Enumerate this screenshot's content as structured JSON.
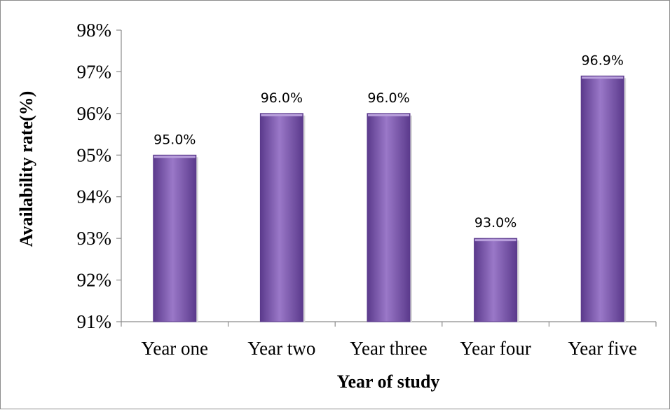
{
  "chart_data": {
    "type": "bar",
    "title": "",
    "xlabel": "Year of study",
    "ylabel": "Availability rate(%)",
    "categories": [
      "Year one",
      "Year two",
      "Year three",
      "Year four",
      "Year five"
    ],
    "values": [
      95.0,
      96.0,
      96.0,
      93.0,
      96.9
    ],
    "data_labels": [
      "95.0%",
      "96.0%",
      "96.0%",
      "93.0%",
      "96.9%"
    ],
    "ylim": [
      91,
      98
    ],
    "y_ticks": [
      91,
      92,
      93,
      94,
      95,
      96,
      97,
      98
    ],
    "y_tick_labels": [
      "91%",
      "92%",
      "93%",
      "94%",
      "95%",
      "96%",
      "97%",
      "98%"
    ],
    "grid": false,
    "legend": "none",
    "bar_color": "#7b55b0",
    "bar_color_dark": "#5b3a8c",
    "bar_color_light": "#9a78c8"
  }
}
